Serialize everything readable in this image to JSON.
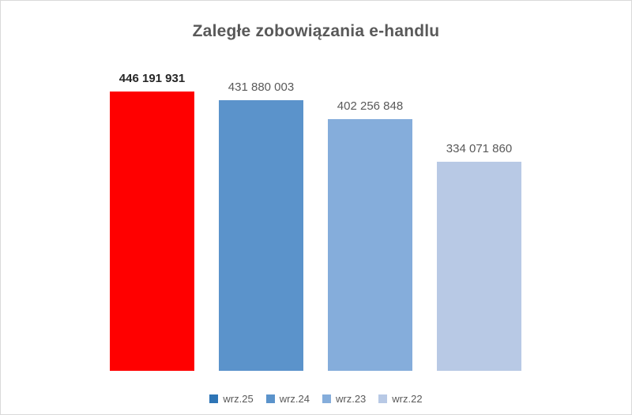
{
  "chart_data": {
    "type": "bar",
    "title": "Zaległe zobowiązania e-handlu",
    "categories": [
      "wrz.25",
      "wrz.24",
      "wrz.23",
      "wrz.22"
    ],
    "values": [
      446191931,
      431880003,
      402256848,
      334071860
    ],
    "labels": [
      "446 191 931",
      "431 880 003",
      "402 256 848",
      "334 071 860"
    ],
    "label_bold": [
      true,
      false,
      false,
      false
    ],
    "bar_colors": [
      "#FF0000",
      "#5B93CB",
      "#85ADDB",
      "#B8C9E5"
    ],
    "legend_colors": [
      "#2E75B6",
      "#5B93CB",
      "#85ADDB",
      "#B8C9E5"
    ],
    "legend_position": "bottom",
    "grid": false,
    "axes_visible": false,
    "ylim": [
      0,
      446191931
    ],
    "xlabel": "",
    "ylabel": "",
    "colors": {
      "title_text": "#595959",
      "label_text": "#595959",
      "bold_label_text": "#262626",
      "legend_text": "#595959",
      "frame_border": "#D9D9D9",
      "background": "#FFFFFF"
    }
  }
}
